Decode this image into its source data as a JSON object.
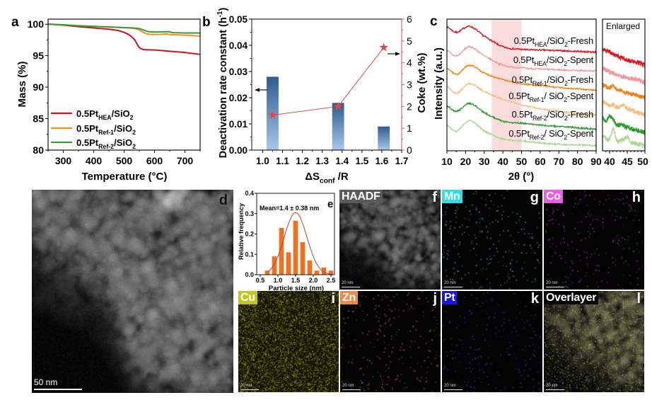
{
  "chart_data": [
    {
      "panel_label": "a",
      "type": "line",
      "title": "",
      "xlabel": "Temperature (°C)",
      "ylabel": "Mass (%)",
      "xlim": [
        250,
        750
      ],
      "ylim": [
        80,
        100.8
      ],
      "xticks": [
        300,
        400,
        500,
        600,
        700
      ],
      "yticks": [
        80,
        85,
        90,
        95,
        100
      ],
      "grid": false,
      "legend_position": "bottom-left",
      "series": [
        {
          "name": "0.5Pt_{HEA}/SiO_{2}",
          "color": "#c8161d",
          "x": [
            250,
            300,
            350,
            400,
            450,
            480,
            500,
            515,
            525,
            535,
            542,
            548,
            555,
            565,
            600,
            650,
            700,
            750
          ],
          "y": [
            100,
            99.85,
            99.6,
            99.4,
            99.2,
            99.0,
            98.7,
            98.35,
            98.0,
            97.5,
            96.9,
            96.4,
            96.1,
            95.95,
            95.9,
            95.7,
            95.5,
            95.2
          ]
        },
        {
          "name": "0.5Pt_{Ref-1}/SiO_{2}",
          "color": "#f0901e",
          "x": [
            250,
            300,
            350,
            400,
            450,
            500,
            530,
            545,
            560,
            575,
            590,
            620,
            640,
            650,
            700,
            750
          ],
          "y": [
            100,
            99.9,
            99.75,
            99.65,
            99.55,
            99.45,
            99.35,
            99.2,
            98.8,
            98.45,
            98.35,
            98.38,
            98.45,
            98.35,
            98.25,
            98.1
          ]
        },
        {
          "name": "0.5Pt_{Ref-2}/SiO_{2}",
          "color": "#3a9a3a",
          "x": [
            250,
            300,
            350,
            400,
            450,
            500,
            530,
            550,
            565,
            580,
            600,
            630,
            645,
            660,
            700,
            750
          ],
          "y": [
            100,
            99.9,
            99.75,
            99.65,
            99.55,
            99.45,
            99.4,
            99.3,
            99.05,
            98.8,
            98.75,
            98.78,
            98.82,
            98.65,
            98.6,
            98.6
          ]
        }
      ]
    },
    {
      "panel_label": "b",
      "type": "bar+line",
      "title": "",
      "xlabel": "ΔS_{conf} /R",
      "ylabel": "Deactivation rate constant (h^{-1})",
      "ylabel_right": "Coke (wt.%)",
      "xlim": [
        0.945,
        1.7
      ],
      "ylim": [
        0,
        0.05
      ],
      "ylim_right": [
        0,
        6
      ],
      "xticks": [
        1.0,
        1.1,
        1.2,
        1.3,
        1.4,
        1.5,
        1.6,
        1.7
      ],
      "yticks": [
        0,
        0.01,
        0.02,
        0.03,
        0.04,
        0.05
      ],
      "yticks_right": [
        0,
        1,
        2,
        3,
        4,
        5,
        6
      ],
      "grid": false,
      "axis_colors": {
        "left": "#2e4f78",
        "right": "#e05555"
      },
      "series": [
        {
          "name": "Deactivation rate constant",
          "type": "bar",
          "axis": "left",
          "x": [
            1.05,
            1.38,
            1.61
          ],
          "values": [
            0.028,
            0.018,
            0.009
          ],
          "color_top": "#2f5b8e",
          "color_bottom": "#a6c7ea"
        },
        {
          "name": "Coke",
          "type": "line",
          "marker": "star",
          "axis": "right",
          "x": [
            1.05,
            1.38,
            1.61
          ],
          "values": [
            1.6,
            2.0,
            4.7
          ],
          "color": "#e04848"
        }
      ]
    },
    {
      "panel_label": "c",
      "type": "line",
      "title": "",
      "xlabel": "2θ (°)",
      "ylabel": "Intensity (a.u.)",
      "xlim": [
        10,
        90
      ],
      "ylim": [
        0,
        10
      ],
      "xticks": [
        10,
        20,
        30,
        40,
        50,
        60,
        70,
        80,
        90
      ],
      "grid": false,
      "highlight": {
        "range": [
          34,
          50
        ],
        "color": "#fbdcdc"
      },
      "x": [
        10,
        15,
        22,
        30,
        40,
        50,
        60,
        70,
        80,
        90
      ],
      "series": [
        {
          "name": "0.5Pt_{HEA}/SiO_{2}-Fresh",
          "color": "#d9141c",
          "y": [
            9.4,
            9.0,
            9.45,
            8.7,
            7.9,
            7.7,
            7.65,
            7.6,
            7.55,
            7.5
          ]
        },
        {
          "name": "0.5Pt_{HEA}/SiO_{2}-Spent",
          "color": "#f09a9a",
          "y": [
            7.6,
            7.2,
            7.9,
            7.2,
            6.5,
            6.3,
            6.2,
            6.15,
            6.1,
            6.05
          ]
        },
        {
          "name": "0.5Pt_{Ref-1}/SiO_{2}-Fresh",
          "color": "#ee8418",
          "y": [
            6.3,
            5.8,
            6.5,
            5.9,
            5.4,
            5.1,
            4.95,
            4.8,
            4.7,
            4.6
          ]
        },
        {
          "name": "0.5Pt_{Ref-1}/ SiO_{2}-Spent",
          "color": "#f5bf7c",
          "y": [
            4.9,
            4.35,
            5.1,
            4.5,
            3.9,
            3.5,
            3.2,
            3.0,
            2.85,
            2.7
          ]
        },
        {
          "name": "0.5Pt_{Ref-2}/SiO_{2}-Fresh",
          "color": "#2e9a30",
          "y": [
            3.4,
            3.0,
            3.6,
            2.9,
            2.25,
            2.1,
            1.95,
            1.85,
            1.75,
            1.65
          ]
        },
        {
          "name": "0.5Pt_{Ref-2}/ SiO_{2}-Spent",
          "color": "#aad892",
          "y": [
            1.95,
            1.5,
            2.3,
            1.5,
            0.9,
            0.75,
            0.6,
            0.5,
            0.45,
            0.4
          ]
        }
      ],
      "inset": {
        "title": "Enlarged",
        "xlim": [
          38,
          50
        ],
        "ylim": [
          0,
          10
        ],
        "xticks": [
          40,
          45,
          50
        ],
        "x": [
          38,
          39,
          40,
          41,
          42,
          43,
          44,
          45,
          46,
          47,
          48,
          49,
          50
        ],
        "series": [
          {
            "name": "0.5Pt_{HEA}/SiO_{2}-Fresh",
            "y": [
              7.7,
              7.6,
              7.5,
              7.35,
              7.2,
              7.1,
              7.0,
              6.9,
              6.8,
              6.75,
              6.7,
              6.6,
              6.5
            ]
          },
          {
            "name": "0.5Pt_{HEA}/SiO_{2}-Spent",
            "y": [
              6.3,
              6.15,
              6.0,
              5.9,
              5.8,
              5.7,
              5.6,
              5.55,
              5.5,
              5.45,
              5.4,
              5.3,
              5.2
            ]
          },
          {
            "name": "0.5Pt_{Ref-1}/SiO_{2}-Fresh",
            "y": [
              5.0,
              4.9,
              4.75,
              5.0,
              4.65,
              4.6,
              4.5,
              4.4,
              4.3,
              4.3,
              4.2,
              4.1,
              4.05
            ]
          },
          {
            "name": "0.5Pt_{Ref-1}/ SiO_{2}-Spent",
            "y": [
              3.7,
              3.6,
              3.4,
              3.5,
              3.3,
              3.35,
              3.45,
              3.2,
              3.1,
              3.0,
              2.9,
              2.85,
              2.75
            ]
          },
          {
            "name": "0.5Pt_{Ref-2}/SiO_{2}-Fresh",
            "y": [
              2.5,
              2.3,
              2.6,
              2.4,
              2.0,
              1.95,
              1.9,
              1.8,
              1.7,
              1.6,
              1.55,
              1.45,
              1.4
            ]
          },
          {
            "name": "0.5Pt_{Ref-2}/ SiO_{2}-Spent",
            "y": [
              1.1,
              0.95,
              0.85,
              1.7,
              0.8,
              0.8,
              0.85,
              1.1,
              0.65,
              0.6,
              0.5,
              0.45,
              0.3
            ]
          }
        ]
      }
    },
    {
      "panel_label": "e",
      "type": "bar",
      "title": "",
      "xlabel": "Particle size (nm)",
      "ylabel": "Relative frequency",
      "xlim": [
        0.4,
        2.6
      ],
      "ylim": [
        0,
        0.4
      ],
      "xticks": [
        0.5,
        1.0,
        1.5,
        2.0,
        2.5
      ],
      "yticks": [
        0.0,
        0.1,
        0.2,
        0.3,
        0.4
      ],
      "grid": false,
      "categories": [
        0.7,
        0.9,
        1.1,
        1.3,
        1.5,
        1.7,
        1.9,
        2.1,
        2.3,
        2.5
      ],
      "values": [
        0.02,
        0.09,
        0.23,
        0.11,
        0.265,
        0.16,
        0.07,
        0.02,
        0.035,
        0.02
      ],
      "fit": {
        "type": "gaussian",
        "center": 1.5,
        "sigma": 0.32,
        "amplitude": 0.305
      },
      "annotation": "Mean=1.4 ± 0.38 nm",
      "colors": {
        "bar": "#f07020",
        "fit": "#c83c3c"
      }
    }
  ],
  "images": {
    "d": {
      "label": "d",
      "scale_bar": "50 nm"
    },
    "maps": [
      {
        "label": "f",
        "tag": "HAADF",
        "tag_color": "#5a5a5a",
        "kind": "haadf",
        "scale_bar": "20 nm"
      },
      {
        "label": "g",
        "tag": "Mn",
        "tag_color": "#30e0e8",
        "kind": "dots",
        "dot_color": "#3cc8cc",
        "scale_bar": "20 nm"
      },
      {
        "label": "h",
        "tag": "Co",
        "tag_color": "#ec5ce8",
        "kind": "dots",
        "dot_color": "#b040b8",
        "scale_bar": "20 nm"
      },
      {
        "label": "i",
        "tag": "Cu",
        "tag_color": "#c4c426",
        "kind": "dense",
        "dot_color": "#b4b428",
        "scale_bar": "20 nm"
      },
      {
        "label": "j",
        "tag": "Zn",
        "tag_color": "#f0894a",
        "kind": "dots",
        "dot_color": "#d07830",
        "scale_bar": "20 nm"
      },
      {
        "label": "k",
        "tag": "Pt",
        "tag_color": "#1616e6",
        "kind": "dots",
        "dot_color": "#3048b0",
        "scale_bar": "20 nm"
      },
      {
        "label": "l",
        "tag": "Overlayer",
        "tag_color": "#000000",
        "kind": "overlay",
        "scale_bar": "20 nm"
      }
    ]
  }
}
